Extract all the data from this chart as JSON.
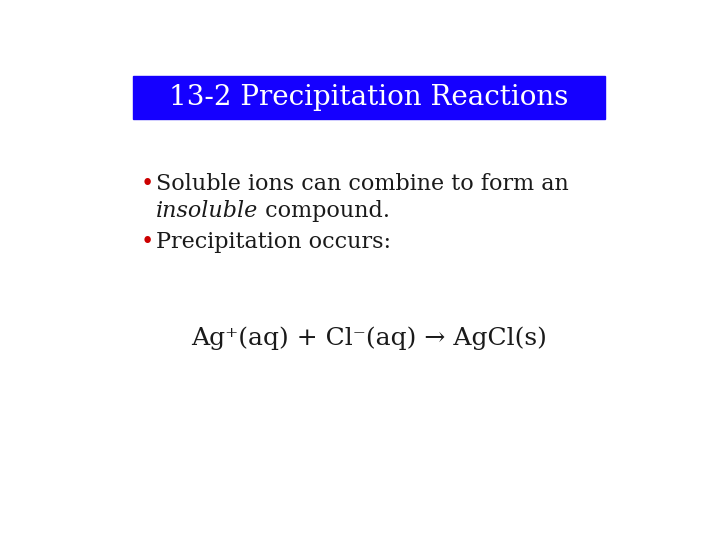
{
  "title": "13-2 Precipitation Reactions",
  "title_bg_color": "#1500FF",
  "title_text_color": "#FFFFFF",
  "background_color": "#FFFFFF",
  "bullet_color": "#CC0000",
  "bullet1_line1": "Soluble ions can combine to form an",
  "bullet1_italic": "insoluble",
  "bullet1_end": " compound.",
  "bullet2": "Precipitation occurs:",
  "equation": "Ag⁺(aq) + Cl⁻(aq) → AgCl(s)",
  "body_text_color": "#1a1a1a",
  "body_fontsize": 16,
  "title_fontsize": 20,
  "eq_fontsize": 18,
  "bullet_fontsize": 16
}
